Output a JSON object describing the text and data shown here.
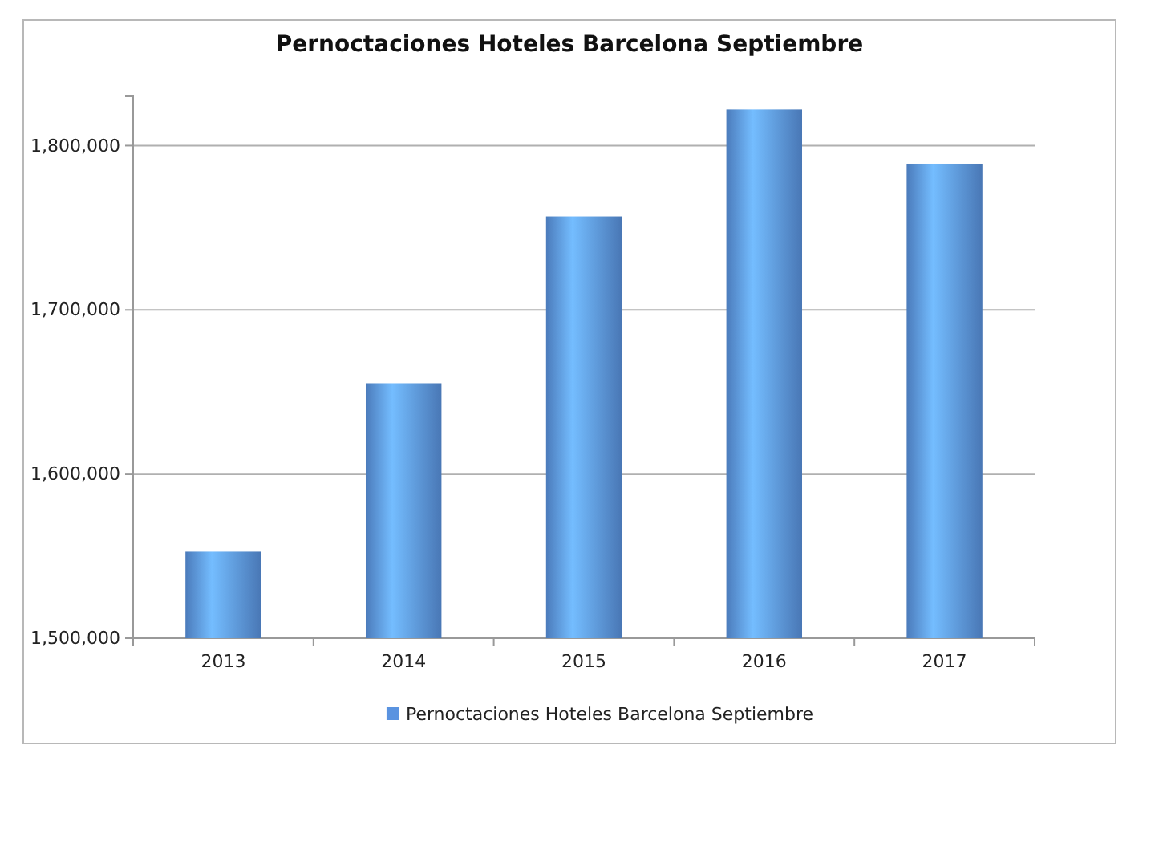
{
  "chart_data": {
    "type": "bar",
    "title": "Pernoctaciones Hoteles Barcelona Septiembre",
    "categories": [
      "2013",
      "2014",
      "2015",
      "2016",
      "2017"
    ],
    "series": [
      {
        "name": "Pernoctaciones Hoteles Barcelona Septiembre",
        "color": "#5a93e0",
        "values": [
          1553000,
          1655000,
          1757000,
          1822000,
          1789000
        ]
      }
    ],
    "ylim": [
      1500000,
      1830000
    ],
    "yticks": [
      {
        "value": 1500000,
        "label": "1,500,000"
      },
      {
        "value": 1600000,
        "label": "1,600,000"
      },
      {
        "value": 1700000,
        "label": "1,700,000"
      },
      {
        "value": 1800000,
        "label": "1,800,000"
      }
    ],
    "grid": "y",
    "legend": "bottom"
  }
}
